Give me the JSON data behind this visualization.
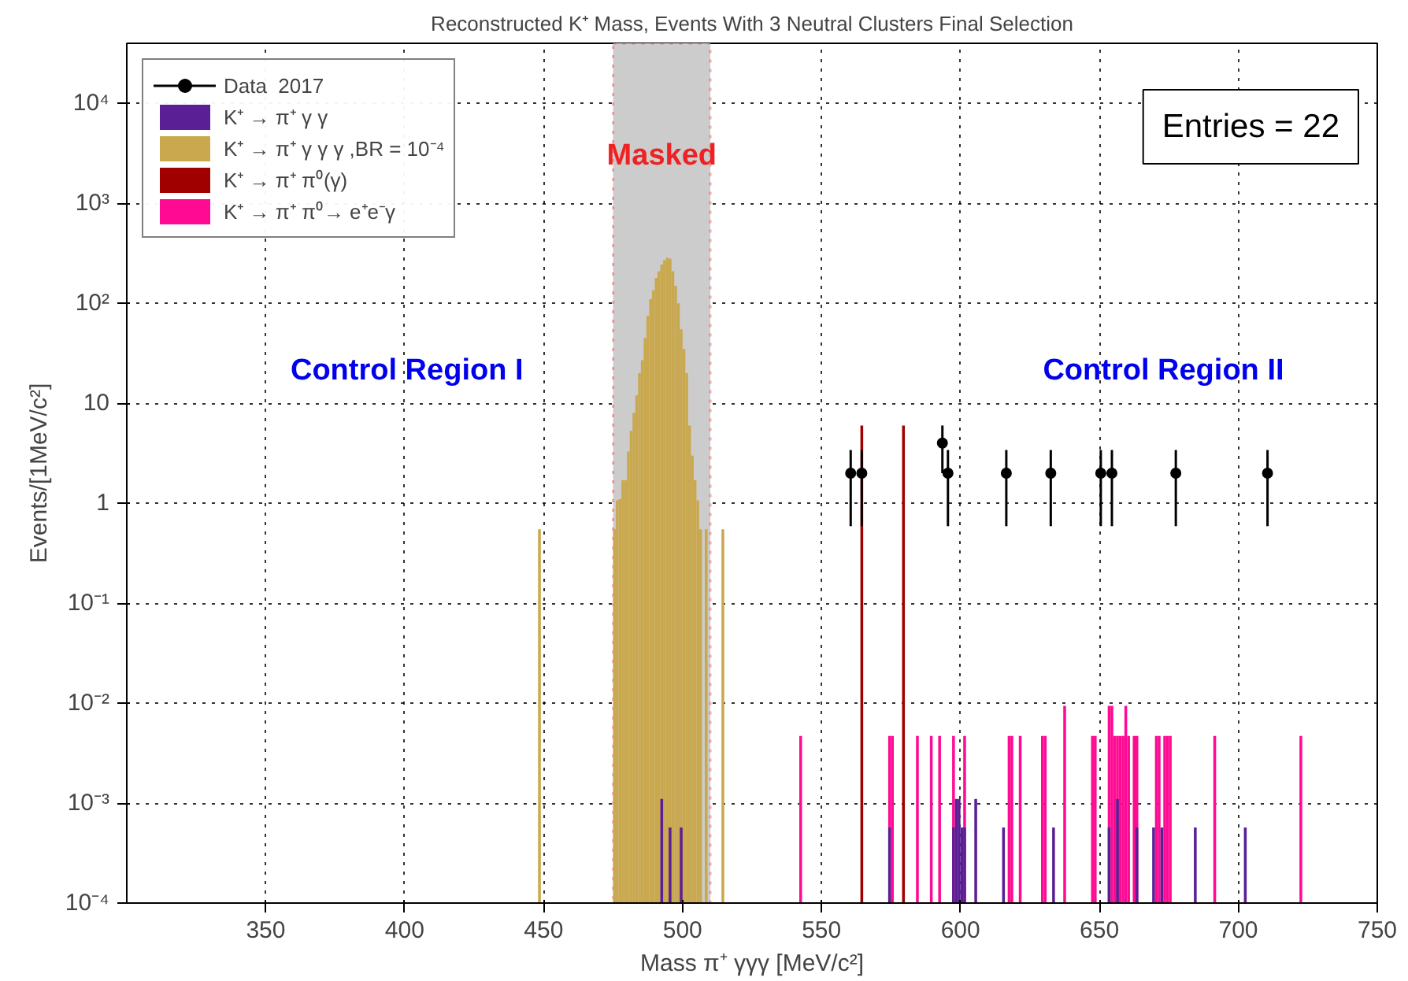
{
  "chart_data": {
    "type": "bar",
    "title": "Reconstructed K⁺ Mass, Events With 3 Neutral Clusters Final Selection",
    "xlabel": "Mass π⁺ γγγ [MeV/c²]",
    "ylabel": "Events/[1MeV/c²]",
    "xlim": [
      300,
      750
    ],
    "xticks": [
      350,
      400,
      450,
      500,
      550,
      600,
      650,
      700,
      750
    ],
    "ylim": [
      0.0001,
      40000
    ],
    "yticks": [
      {
        "value": 0.0001,
        "label": "10⁻⁴"
      },
      {
        "value": 0.001,
        "label": "10⁻³"
      },
      {
        "value": 0.01,
        "label": "10⁻²"
      },
      {
        "value": 0.1,
        "label": "10⁻¹"
      },
      1,
      10,
      {
        "value": 100,
        "label": "10²"
      },
      {
        "value": 1000,
        "label": "10³"
      },
      {
        "value": 10000,
        "label": "10⁴"
      }
    ],
    "log": true,
    "grid": true,
    "legend": "top left",
    "marker": "circle",
    "bands": [
      {
        "axis": "x",
        "from": 475,
        "to": 510,
        "label": "Masked",
        "color": "#cccccc"
      }
    ],
    "annotations": [
      "Entries = 22",
      "Control Region I",
      "Control Region II"
    ],
    "series": [
      {
        "name": "Data  2017",
        "type": "scatter",
        "color": "#000000",
        "x": [
          560.5,
          564.5,
          593.5,
          595.5,
          616.5,
          632.5,
          650.5,
          654.5,
          677.5,
          710.5
        ],
        "values": [
          2,
          2,
          4,
          2,
          2,
          2,
          2,
          2,
          2,
          2
        ],
        "errors": [
          [
            0.59,
            3.41
          ],
          [
            0.59,
            3.41
          ],
          [
            2,
            6
          ],
          [
            0.59,
            3.41
          ],
          [
            0.59,
            3.41
          ],
          [
            0.59,
            3.41
          ],
          [
            0.59,
            3.41
          ],
          [
            0.59,
            3.41
          ],
          [
            0.59,
            3.41
          ],
          [
            0.59,
            3.41
          ]
        ]
      },
      {
        "name": "K⁺ → π⁺ γ γ",
        "color": "#5b1f95",
        "x": [
          492.5,
          495.5,
          499.5,
          574.5,
          597.5,
          598.5,
          599.5,
          600.5,
          601.5,
          605.5,
          615.5,
          633.5,
          653.5,
          656.5,
          663.5,
          669.5,
          672.5,
          684.5,
          702.5
        ],
        "values": [
          0.0011,
          0.00057,
          0.00057,
          0.00057,
          0.00057,
          0.0011,
          0.0011,
          0.00057,
          0.00057,
          0.0011,
          0.00057,
          0.00057,
          0.00057,
          0.0011,
          0.00057,
          0.00057,
          0.00057,
          0.00057,
          0.00057
        ]
      },
      {
        "name": "K⁺ → π⁺ γ γ γ ,BR = 10⁻⁴",
        "color": "#c9a84e",
        "x": [
          448.5,
          475.5,
          476.5,
          477.5,
          478.5,
          479.5,
          480.5,
          481.5,
          482.5,
          483.5,
          484.5,
          485.5,
          486.5,
          487.5,
          488.5,
          489.5,
          490.5,
          491.5,
          492.5,
          493.5,
          494.5,
          495.5,
          496.5,
          497.5,
          498.5,
          499.5,
          500.5,
          501.5,
          502.5,
          503.5,
          504.5,
          505.5,
          506.5,
          507.5,
          508.5,
          514.5
        ],
        "values": [
          0.55,
          0.55,
          1.07,
          1.1,
          1.7,
          1.7,
          3.3,
          5.3,
          8,
          12,
          20,
          27,
          45,
          75,
          110,
          135,
          180,
          210,
          245,
          270,
          285,
          280,
          210,
          150,
          100,
          55,
          35,
          20,
          6,
          3,
          1.7,
          1.07,
          0.55,
          null,
          0.55,
          0.55
        ]
      },
      {
        "name": "K⁺ → π⁺ π⁰(γ)",
        "color": "#a00000",
        "x": [
          564.5,
          579.5
        ],
        "values": [
          6,
          6
        ]
      },
      {
        "name": "K⁺ → π⁺ π⁰→ e⁺e⁻γ",
        "color": "#ff0a93",
        "x": [
          542.5,
          574.5,
          575.5,
          584.5,
          589.5,
          592.5,
          597.5,
          601.5,
          617.5,
          618.5,
          621.5,
          629.5,
          630.5,
          637.5,
          647.5,
          648.5,
          653.5,
          654.5,
          655.5,
          656.5,
          657.5,
          658.5,
          659.5,
          660.5,
          662.5,
          663.5,
          670.5,
          671.5,
          673.5,
          674.5,
          675.5,
          691.5,
          722.5
        ],
        "values": [
          0.0047,
          0.0047,
          0.0047,
          0.0047,
          0.0047,
          0.0047,
          0.0047,
          0.0047,
          0.0047,
          0.0047,
          0.0047,
          0.0047,
          0.0047,
          0.0094,
          0.0047,
          0.0047,
          0.0094,
          0.0094,
          0.0047,
          0.0047,
          0.0047,
          0.0047,
          0.0094,
          0.0047,
          0.0047,
          0.0047,
          0.0047,
          0.0047,
          0.0047,
          0.0047,
          0.0047,
          0.0047,
          0.0047
        ]
      }
    ]
  }
}
